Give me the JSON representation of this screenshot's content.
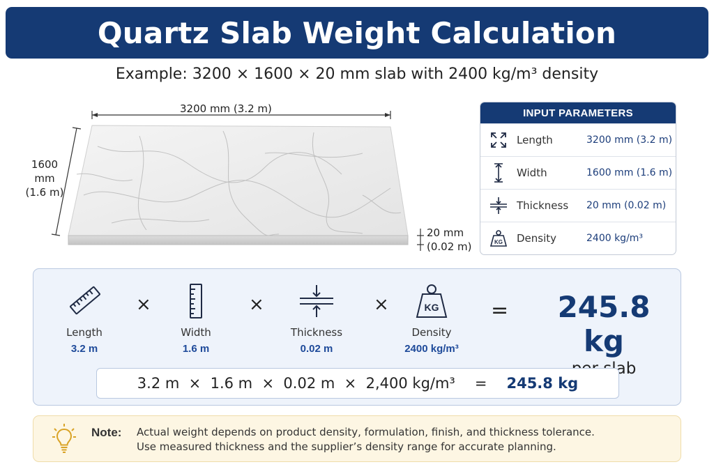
{
  "title": "Quartz Slab Weight Calculation",
  "subtitle": "Example: 3200 × 1600 × 20 mm slab with 2400 kg/m³ density",
  "illustration": {
    "length_label": "3200 mm (3.2 m)",
    "width_label_line1": "1600 mm",
    "width_label_line2": "(1.6 m)",
    "thickness_label_line1": "20 mm",
    "thickness_label_line2": "(0.02 m)"
  },
  "input_parameters": {
    "heading": "INPUT PARAMETERS",
    "rows": [
      {
        "icon": "expand-arrows-icon",
        "label": "Length",
        "value": "3200 mm (3.2 m)"
      },
      {
        "icon": "vertical-dimension-icon",
        "label": "Width",
        "value": "1600 mm (1.6 m)"
      },
      {
        "icon": "thickness-arrows-icon",
        "label": "Thickness",
        "value": "20 mm (0.02 m)"
      },
      {
        "icon": "kg-weight-icon",
        "label": "Density",
        "value": "2400 kg/m³"
      }
    ]
  },
  "formula": {
    "factors": [
      {
        "icon": "ruler-icon",
        "label": "Length",
        "value": "3.2 m"
      },
      {
        "icon": "vertical-ruler-icon",
        "label": "Width",
        "value": "1.6 m"
      },
      {
        "icon": "thickness-icon",
        "label": "Thickness",
        "value": "0.02 m"
      },
      {
        "icon": "kg-weight-icon",
        "label": "Density",
        "value": "2400 kg/m³"
      }
    ],
    "multiply_symbol": "×",
    "equals_symbol": "=",
    "result_value": "245.8 kg",
    "result_unit": "per slab",
    "equation": "3.2 m  ×  1.6 m  ×  0.02 m  ×  2,400 kg/m³",
    "equation_equals": "=",
    "equation_result": "245.8 kg"
  },
  "note": {
    "icon": "lightbulb-icon",
    "label": "Note:",
    "line1": "Actual weight depends on product density, formulation, finish, and thickness tolerance.",
    "line2": "Use measured thickness and the supplier’s density range for accurate planning."
  },
  "colors": {
    "navy": "#153a74",
    "accent_blue": "#1e4a9a",
    "panel_bg": "#eef3fb",
    "note_bg": "#fdf6e3"
  }
}
